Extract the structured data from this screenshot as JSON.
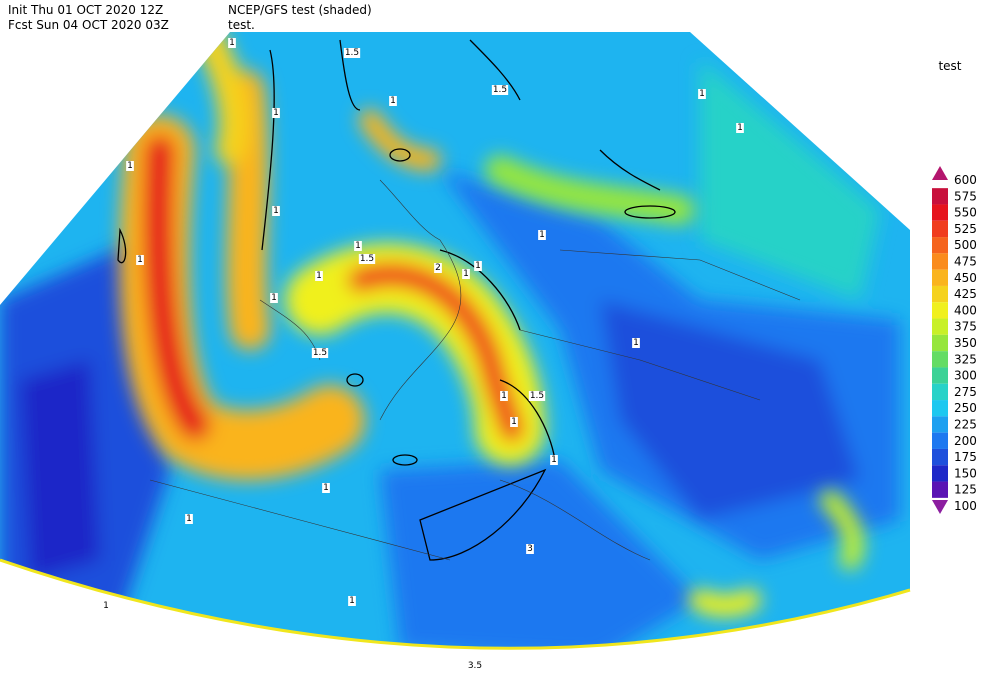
{
  "header": {
    "init": "Init  Thu 01 OCT 2020 12Z",
    "fcst": "Fcst Sun 04 OCT 2020 03Z",
    "model": "NCEP/GFS test (shaded)",
    "subtitle": "test."
  },
  "legend": {
    "title": "test",
    "levels": [
      {
        "value": 600,
        "color": "#b4166e"
      },
      {
        "value": 575,
        "color": "#c8103c"
      },
      {
        "value": 550,
        "color": "#e6141e"
      },
      {
        "value": 525,
        "color": "#f03c1e"
      },
      {
        "value": 500,
        "color": "#f5641e"
      },
      {
        "value": 475,
        "color": "#fa8c1e"
      },
      {
        "value": 450,
        "color": "#fab41e"
      },
      {
        "value": 425,
        "color": "#f5d21e"
      },
      {
        "value": 400,
        "color": "#f0f01e"
      },
      {
        "value": 375,
        "color": "#c8f028"
      },
      {
        "value": 350,
        "color": "#96e63c"
      },
      {
        "value": 325,
        "color": "#64dc64"
      },
      {
        "value": 300,
        "color": "#3cd296"
      },
      {
        "value": 275,
        "color": "#28d2c8"
      },
      {
        "value": 250,
        "color": "#1ec8f0"
      },
      {
        "value": 225,
        "color": "#1ea0f0"
      },
      {
        "value": 200,
        "color": "#1e78f0"
      },
      {
        "value": 175,
        "color": "#1e50dc"
      },
      {
        "value": 150,
        "color": "#1e28c8"
      },
      {
        "value": 125,
        "color": "#5a14b4"
      },
      {
        "value": 100,
        "color": "#8c1ea0"
      }
    ]
  },
  "contour_labels": [
    "1",
    "1.5",
    "1",
    "1.5",
    "1",
    "1",
    "1",
    "1",
    "1",
    "1",
    "1",
    "1",
    "1.5",
    "2",
    "1",
    "1",
    "1",
    "1.5",
    "1",
    "1.5",
    "1",
    "1",
    "1",
    "1",
    "1",
    "1",
    "3",
    "1",
    "1",
    "3.5"
  ]
}
